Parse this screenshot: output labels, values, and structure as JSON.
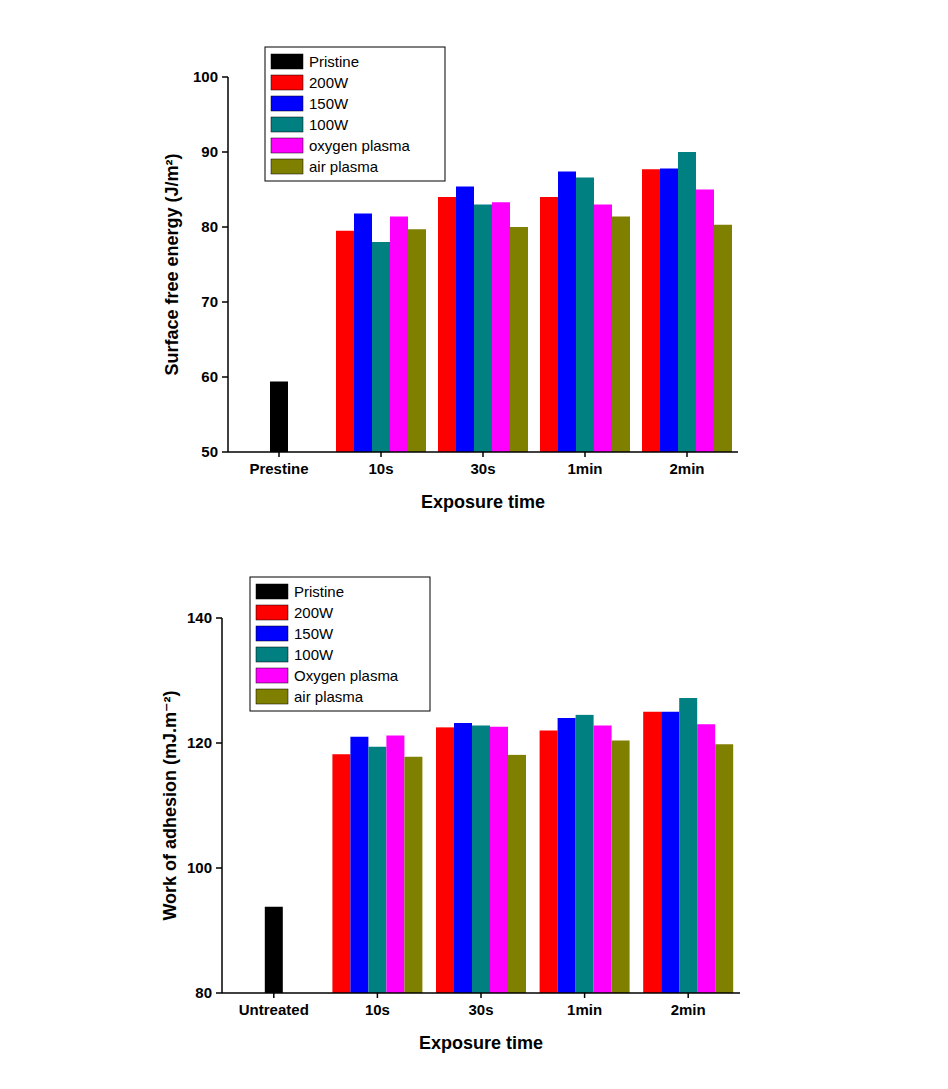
{
  "chart_data": [
    {
      "type": "bar",
      "x_label": "Exposure time",
      "y_label": "Surface free energy (J/m²)",
      "categories": [
        "Prestine",
        "10s",
        "30s",
        "1min",
        "2min"
      ],
      "series": [
        {
          "name": "Pristine",
          "color": "#000000",
          "values": [
            59.4,
            null,
            null,
            null,
            null
          ]
        },
        {
          "name": "200W",
          "color": "#ff0000",
          "values": [
            null,
            79.5,
            84.0,
            84.0,
            87.7
          ]
        },
        {
          "name": "150W",
          "color": "#0000ff",
          "values": [
            null,
            81.8,
            85.4,
            87.4,
            87.8
          ]
        },
        {
          "name": "100W",
          "color": "#008080",
          "values": [
            null,
            78.0,
            83.0,
            86.6,
            90.0
          ]
        },
        {
          "name": "oxygen plasma",
          "color": "#ff00ff",
          "values": [
            null,
            81.4,
            83.3,
            83.0,
            85.0
          ]
        },
        {
          "name": "air plasma",
          "color": "#808000",
          "values": [
            null,
            79.7,
            80.0,
            81.4,
            80.3
          ]
        }
      ],
      "ylim": [
        50,
        100
      ],
      "yticks": [
        50,
        60,
        70,
        80,
        90,
        100
      ],
      "grid": false,
      "legend": "upper left"
    },
    {
      "type": "bar",
      "x_label": "Exposure time",
      "y_label": "Work of adhesion (mJ.m⁻²)",
      "categories": [
        "Untreated",
        "10s",
        "30s",
        "1min",
        "2min"
      ],
      "series": [
        {
          "name": "Pristine",
          "color": "#000000",
          "values": [
            93.8,
            null,
            null,
            null,
            null
          ]
        },
        {
          "name": "200W",
          "color": "#ff0000",
          "values": [
            null,
            118.2,
            122.5,
            122.0,
            125.0
          ]
        },
        {
          "name": "150W",
          "color": "#0000ff",
          "values": [
            null,
            121.0,
            123.2,
            124.0,
            125.0
          ]
        },
        {
          "name": "100W",
          "color": "#008080",
          "values": [
            null,
            119.4,
            122.8,
            124.5,
            127.2
          ]
        },
        {
          "name": "Oxygen plasma",
          "color": "#ff00ff",
          "values": [
            null,
            121.2,
            122.6,
            122.8,
            123.0
          ]
        },
        {
          "name": "air plasma",
          "color": "#808000",
          "values": [
            null,
            117.8,
            118.1,
            120.4,
            119.8
          ]
        }
      ],
      "ylim": [
        80,
        140
      ],
      "yticks": [
        80,
        100,
        120,
        140
      ],
      "grid": false,
      "legend": "upper left"
    }
  ]
}
